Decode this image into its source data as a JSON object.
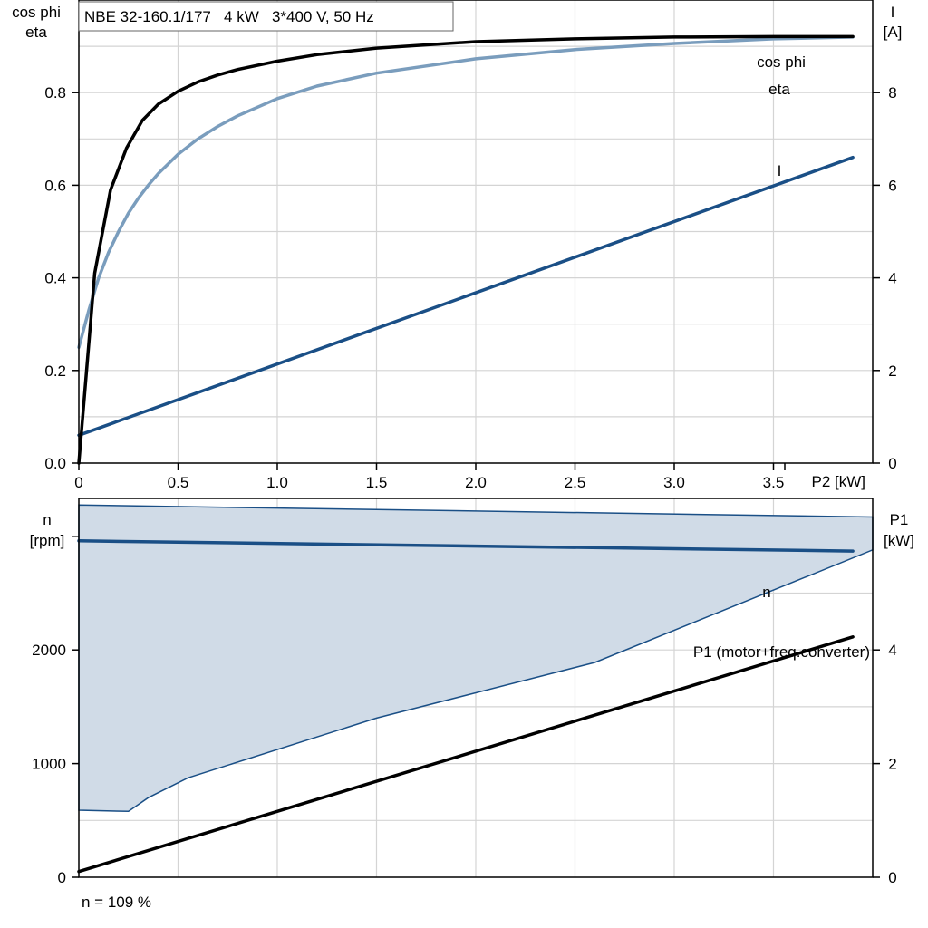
{
  "title_box": "NBE 32-160.1/177   4 kW   3*400 V, 50 Hz",
  "footnote": "n = 109 %",
  "colors": {
    "eta": "#000000",
    "cosphi": "#7a9dbd",
    "current": "#1a4f86",
    "speed": "#1a4f86",
    "band_fill": "#d0dbe7",
    "band_edge": "#1a4f86",
    "p1": "#000000",
    "grid": "#d4d4d4"
  },
  "chart_data": [
    {
      "type": "line",
      "xlabel": "P2 [kW]",
      "ylabel_left": [
        "cos phi",
        "eta"
      ],
      "ylabel_right": [
        "I",
        "[A]"
      ],
      "xlim": [
        0,
        4.0
      ],
      "ylim_left": [
        0,
        1.0
      ],
      "ylim_right": [
        0,
        10
      ],
      "x_ticks": [
        0,
        0.5,
        1.0,
        1.5,
        2.0,
        2.5,
        3.0,
        3.5
      ],
      "x_tick_labels": [
        "0",
        "0.5",
        "1.0",
        "1.5",
        "2.0",
        "2.5",
        "3.0",
        "3.5"
      ],
      "y_left_ticks": [
        0.0,
        0.2,
        0.4,
        0.6,
        0.8
      ],
      "y_left_tick_labels": [
        "0.0",
        "0.2",
        "0.4",
        "0.6",
        "0.8"
      ],
      "y_right_ticks": [
        0,
        2,
        4,
        6,
        8
      ],
      "y_right_tick_labels": [
        "0",
        "2",
        "4",
        "6",
        "8"
      ],
      "grid": true,
      "series": [
        {
          "name": "eta",
          "axis": "left",
          "x": [
            0,
            0.08,
            0.16,
            0.24,
            0.32,
            0.4,
            0.5,
            0.6,
            0.7,
            0.8,
            1.0,
            1.2,
            1.5,
            2.0,
            2.5,
            3.0,
            3.5,
            3.9
          ],
          "y": [
            0.0,
            0.41,
            0.59,
            0.68,
            0.74,
            0.775,
            0.803,
            0.823,
            0.838,
            0.85,
            0.868,
            0.882,
            0.896,
            0.91,
            0.916,
            0.92,
            0.921,
            0.921
          ]
        },
        {
          "name": "cos phi",
          "axis": "left",
          "x": [
            0,
            0.05,
            0.1,
            0.15,
            0.2,
            0.25,
            0.3,
            0.35,
            0.4,
            0.5,
            0.6,
            0.7,
            0.8,
            1.0,
            1.2,
            1.5,
            2.0,
            2.5,
            3.0,
            3.5,
            3.9
          ],
          "y": [
            0.25,
            0.33,
            0.4,
            0.455,
            0.5,
            0.54,
            0.572,
            0.6,
            0.625,
            0.667,
            0.7,
            0.727,
            0.75,
            0.787,
            0.814,
            0.842,
            0.873,
            0.893,
            0.906,
            0.916,
            0.92
          ]
        },
        {
          "name": "I",
          "axis": "right",
          "x": [
            0,
            3.9
          ],
          "y": [
            0.6,
            6.6
          ]
        }
      ],
      "labels": [
        {
          "text": "cos phi",
          "series": "cos phi"
        },
        {
          "text": "eta",
          "series": "eta"
        },
        {
          "text": "I",
          "series": "I"
        }
      ]
    },
    {
      "type": "area",
      "xlim": [
        0,
        4.0
      ],
      "ylabel_left": [
        "n",
        "[rpm]"
      ],
      "ylabel_right": [
        "P1",
        "[kW]"
      ],
      "ylim_left": [
        0,
        3333.3
      ],
      "ylim_right": [
        0,
        6.667
      ],
      "y_left_ticks": [
        0,
        1000,
        2000
      ],
      "y_left_tick_labels": [
        "0",
        "1000",
        "2000"
      ],
      "y_right_ticks": [
        0,
        2,
        4
      ],
      "y_right_tick_labels": [
        "0",
        "2",
        "4"
      ],
      "grid": true,
      "band": {
        "upper": {
          "x": [
            0,
            4.0
          ],
          "y": [
            3275,
            3170
          ]
        },
        "lower": {
          "x": [
            0,
            0.25,
            0.35,
            0.55,
            1.5,
            2.6,
            4.0
          ],
          "y": [
            590,
            580,
            700,
            875,
            1400,
            1890,
            2880
          ]
        }
      },
      "series": [
        {
          "name": "n",
          "axis": "left",
          "x": [
            0,
            3.9
          ],
          "y": [
            2960,
            2870
          ]
        },
        {
          "name": "P1 (motor+freq.converter)",
          "axis": "right",
          "x": [
            0,
            3.9
          ],
          "y": [
            0.1,
            4.23
          ]
        }
      ],
      "labels": [
        {
          "text": "n",
          "series": "n"
        },
        {
          "text": "P1 (motor+freq.converter)",
          "series": "P1 (motor+freq.converter)"
        }
      ]
    }
  ]
}
